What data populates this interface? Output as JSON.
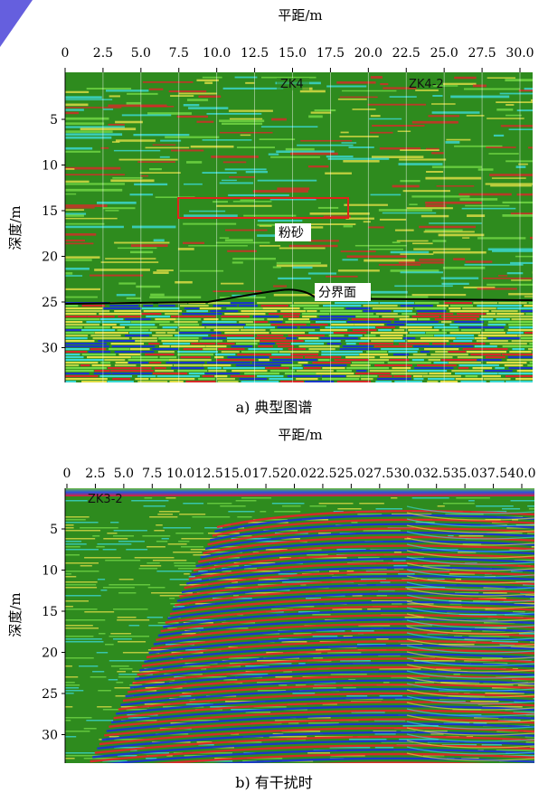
{
  "panel_a": {
    "top_axis_label": "平距/m",
    "x_ticks": [
      "0",
      "2.5",
      "5.0",
      "7.5",
      "10.0",
      "12.5",
      "15.0",
      "17.5",
      "20.0",
      "22.5",
      "25.0",
      "27.5",
      "30.0"
    ],
    "y_axis_label": "深度/m",
    "y_ticks": [
      "5",
      "10",
      "15",
      "20",
      "25",
      "30"
    ],
    "annotations": {
      "borehole_1": "ZK4",
      "borehole_2": "ZK4-2",
      "silt_label": "粉砂",
      "boundary_label": "分界面"
    },
    "caption": "a) 典型图谱",
    "colors": {
      "background": "#2e8b1e",
      "highlight_box": "#e0241b",
      "boundary_line": "#000000"
    }
  },
  "panel_b": {
    "top_axis_label": "平距/m",
    "x_ticks": [
      "0",
      "2.5",
      "5.0",
      "7.5",
      "10.0",
      "12.5",
      "15.0",
      "17.5",
      "20.0",
      "22.5",
      "25.0",
      "27.5",
      "30.0",
      "32.5",
      "35.0",
      "37.5",
      "40.0"
    ],
    "y_axis_label": "深度/m",
    "y_ticks": [
      "5",
      "10",
      "15",
      "20",
      "25",
      "30"
    ],
    "annotations": {
      "borehole": "ZK3-2"
    },
    "caption": "b) 有干扰时",
    "colors": {
      "background": "#2e8b1e",
      "interference_red": "#e8202a",
      "interference_blue": "#1a2fd8"
    }
  }
}
